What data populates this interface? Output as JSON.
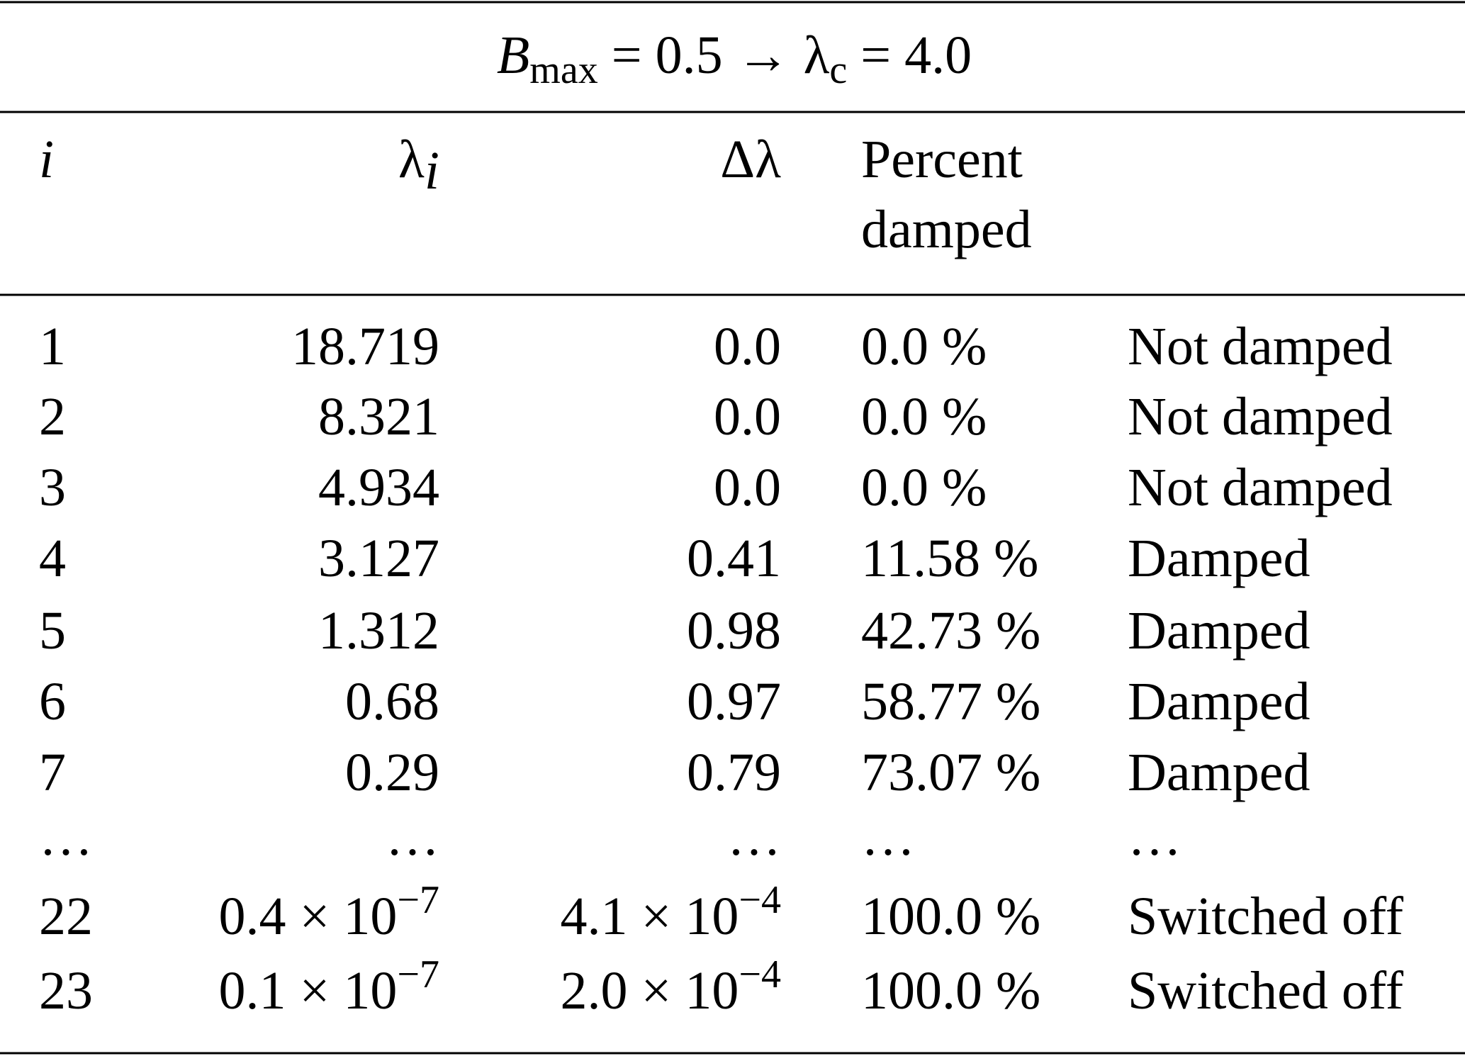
{
  "table": {
    "title": [
      "B",
      "max",
      " = 0.5 → λ",
      "c",
      " = 4.0"
    ],
    "header": [
      "i",
      [
        "λ",
        "i"
      ],
      "Δλ",
      [
        "Percent",
        "damped"
      ]
    ],
    "rows": [
      [
        "1",
        "18.719",
        "0.0",
        "0.0 %",
        "Not damped"
      ],
      [
        "2",
        "8.321",
        "0.0",
        "0.0 %",
        "Not damped"
      ],
      [
        "3",
        "4.934",
        "0.0",
        "0.0 %",
        "Not damped"
      ],
      [
        "4",
        "3.127",
        "0.41",
        "11.58 %",
        "Damped"
      ],
      [
        "5",
        "1.312",
        "0.98",
        "42.73 %",
        "Damped"
      ],
      [
        "6",
        "0.68",
        "0.97",
        "58.77 %",
        "Damped"
      ],
      [
        "7",
        "0.29",
        "0.79",
        "73.07 %",
        "Damped"
      ],
      [
        "…",
        "…",
        "…",
        "…",
        "…"
      ],
      [
        "22",
        [
          "0.4 × 10",
          "−7"
        ],
        [
          "4.1 × 10",
          "−4"
        ],
        "100.0 %",
        "Switched off"
      ],
      [
        "23",
        [
          "0.1 × 10",
          "−7"
        ],
        [
          "2.0 × 10",
          "−4"
        ],
        "100.0 %",
        "Switched off"
      ]
    ]
  }
}
